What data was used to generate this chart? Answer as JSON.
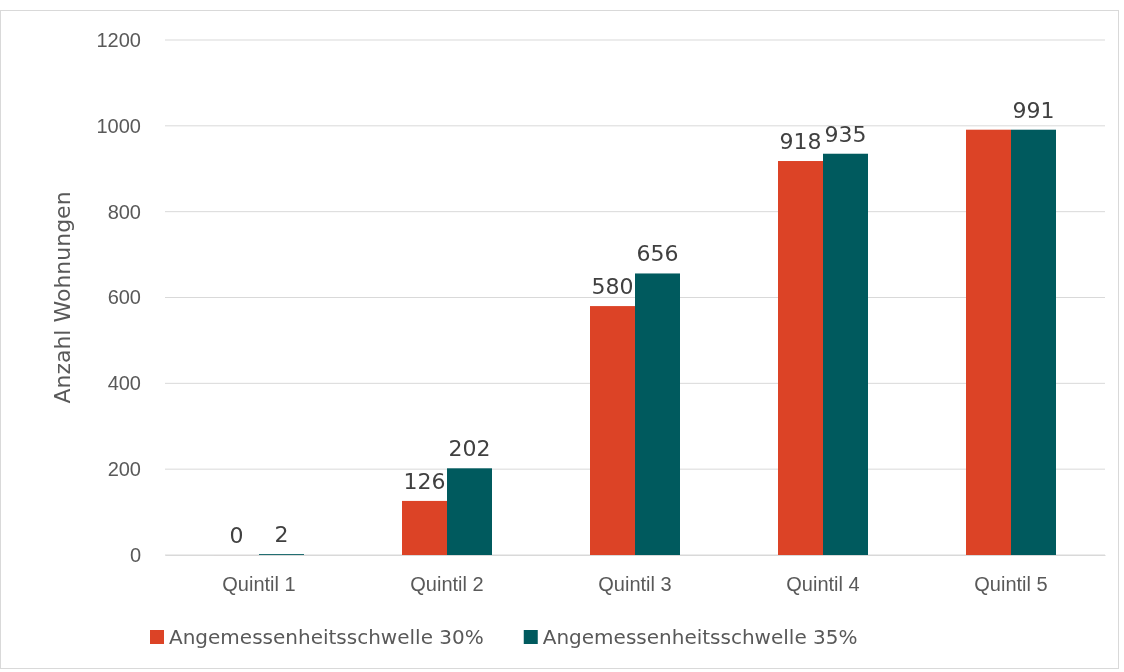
{
  "chart_data": {
    "type": "bar",
    "ylabel": "Anzahl Wohnungen",
    "categories": [
      "Quintil 1",
      "Quintil 2",
      "Quintil 3",
      "Quintil 4",
      "Quintil 5"
    ],
    "series": [
      {
        "name": "Angemessenheitsschwelle 30%",
        "color": "#dc4326",
        "values": [
          0,
          126,
          580,
          918,
          991
        ],
        "value_labels": [
          "0",
          "126",
          "580",
          "918",
          null
        ]
      },
      {
        "name": "Angemessenheitsschwelle 35%",
        "color": "#005a5e",
        "values": [
          2,
          202,
          656,
          935,
          991
        ],
        "value_labels": [
          "2",
          "202",
          "656",
          "935",
          "991"
        ]
      }
    ],
    "ylim": [
      0,
      1200
    ],
    "yticks": [
      0,
      200,
      400,
      600,
      800,
      1000,
      1200
    ],
    "grid": "y",
    "legend": "bottom"
  }
}
